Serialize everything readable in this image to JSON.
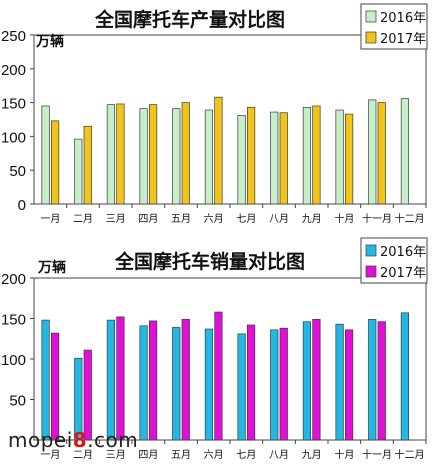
{
  "chart_data": [
    {
      "type": "bar",
      "title": "全国摩托车产量对比图",
      "unit": "万辆",
      "categories": [
        "一月",
        "二月",
        "三月",
        "四月",
        "五月",
        "六月",
        "七月",
        "八月",
        "九月",
        "十月",
        "十一月",
        "十二月"
      ],
      "series": [
        {
          "name": "2016年",
          "color": "#c6eec8",
          "values": [
            145,
            96,
            147,
            141,
            141,
            139,
            131,
            136,
            143,
            139,
            154,
            156
          ]
        },
        {
          "name": "2017年",
          "color": "#f2c418",
          "values": [
            123,
            115,
            148,
            147,
            150,
            158,
            143,
            135,
            145,
            133,
            150,
            null
          ]
        }
      ],
      "ylim": [
        0,
        250
      ],
      "yticks": [
        0,
        50,
        100,
        150,
        200,
        250
      ],
      "grid": false,
      "legend": "top-right"
    },
    {
      "type": "bar",
      "title": "全国摩托车销量对比图",
      "unit": "万辆",
      "categories": [
        "一月",
        "二月",
        "三月",
        "四月",
        "五月",
        "六月",
        "七月",
        "八月",
        "九月",
        "十月",
        "十一月",
        "十二月"
      ],
      "series": [
        {
          "name": "2016年",
          "color": "#22b8e6",
          "values": [
            148,
            101,
            148,
            141,
            139,
            137,
            131,
            136,
            146,
            143,
            149,
            157
          ]
        },
        {
          "name": "2017年",
          "color": "#e10fd8",
          "values": [
            132,
            111,
            152,
            147,
            149,
            158,
            142,
            138,
            149,
            136,
            146,
            null
          ]
        }
      ],
      "ylim": [
        0,
        200
      ],
      "yticks": [
        50,
        100,
        150,
        200
      ],
      "grid": false,
      "legend": "top-right"
    }
  ],
  "watermark": {
    "prefix": "mopei",
    "accent": "8",
    "suffix": ".com"
  }
}
